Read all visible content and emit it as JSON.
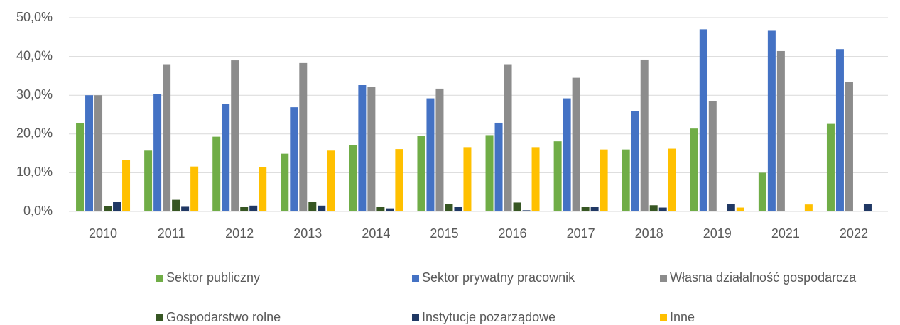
{
  "chart_data": {
    "type": "bar",
    "categories": [
      "2010",
      "2011",
      "2012",
      "2013",
      "2014",
      "2015",
      "2016",
      "2017",
      "2018",
      "2019",
      "2021",
      "2022"
    ],
    "series": [
      {
        "name": "Sektor publiczny",
        "color": "#70ad47",
        "values": [
          22.8,
          15.7,
          19.3,
          14.9,
          17.1,
          19.5,
          19.7,
          18.1,
          16.0,
          21.4,
          10.0,
          22.6
        ]
      },
      {
        "name": "Sektor prywatny pracownik",
        "color": "#4472c4",
        "values": [
          30.0,
          30.4,
          27.7,
          26.9,
          32.6,
          29.2,
          22.9,
          29.2,
          25.9,
          47.0,
          46.8,
          41.9
        ]
      },
      {
        "name": "Własna działalność gospodarcza",
        "color": "#8c8c8c",
        "values": [
          30.0,
          38.0,
          39.0,
          38.3,
          32.2,
          31.7,
          38.0,
          34.5,
          39.2,
          28.5,
          41.4,
          33.5
        ]
      },
      {
        "name": "Gospodarstwo rolne",
        "color": "#375623",
        "values": [
          1.4,
          3.0,
          1.1,
          2.5,
          1.1,
          1.9,
          2.3,
          1.1,
          1.6,
          0,
          0,
          0
        ]
      },
      {
        "name": "Instytucje pozarządowe",
        "color": "#203864",
        "values": [
          2.4,
          1.2,
          1.5,
          1.5,
          0.8,
          1.1,
          0.3,
          1.1,
          1.0,
          2.0,
          0,
          1.9
        ]
      },
      {
        "name": "Inne",
        "color": "#ffc000",
        "values": [
          13.3,
          11.6,
          11.4,
          15.7,
          16.1,
          16.6,
          16.6,
          16.0,
          16.2,
          1.0,
          1.8,
          0
        ]
      }
    ],
    "ylim": [
      0,
      50
    ],
    "yticks": [
      {
        "value": 0,
        "label": "0,0%"
      },
      {
        "value": 10,
        "label": "10,0%"
      },
      {
        "value": 20,
        "label": "20,0%"
      },
      {
        "value": 30,
        "label": "30,0%"
      },
      {
        "value": 40,
        "label": "40,0%"
      },
      {
        "value": 50,
        "label": "50,0%"
      }
    ],
    "grid": true,
    "legend": "bottom"
  }
}
